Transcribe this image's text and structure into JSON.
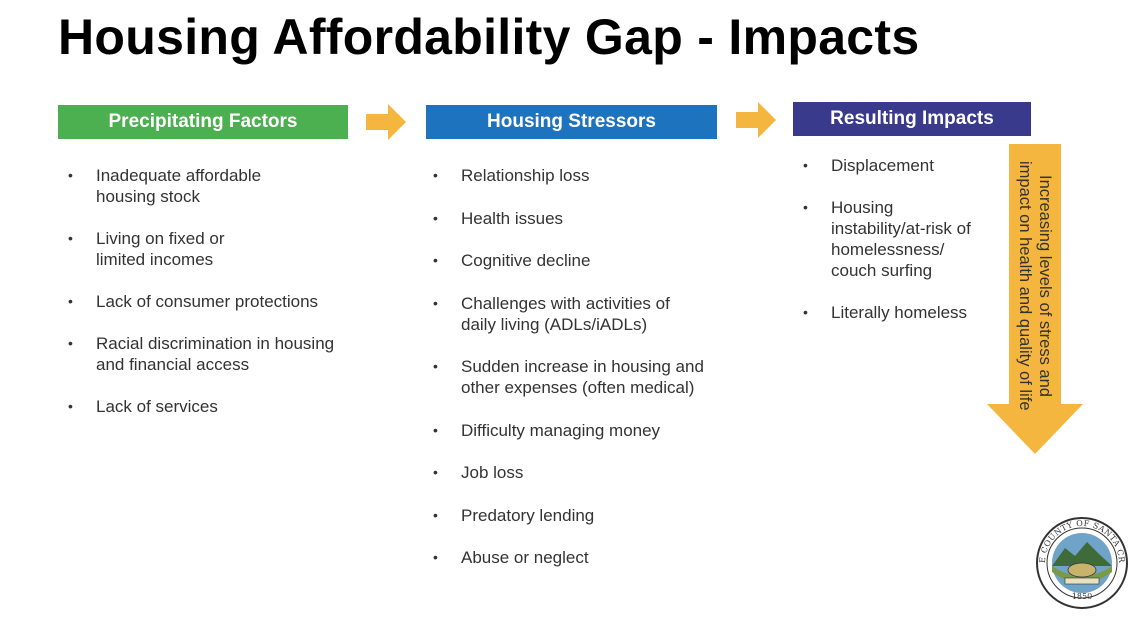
{
  "title": "Housing Affordability Gap - Impacts",
  "columns": [
    {
      "header": "Precipitating Factors",
      "color": "#4caf50",
      "items": [
        "Inadequate affordable housing stock",
        "Living on fixed or limited incomes",
        "Lack of consumer protections",
        "Racial discrimination in housing and financial access",
        "Lack of services"
      ]
    },
    {
      "header": "Housing Stressors",
      "color": "#1e73be",
      "items": [
        "Relationship loss",
        "Health issues",
        "Cognitive decline",
        "Challenges with activities of daily living (ADLs/iADLs)",
        "Sudden increase in housing and other expenses (often medical)",
        "Difficulty managing money",
        "Job loss",
        "Predatory lending",
        "Abuse or neglect"
      ]
    },
    {
      "header": "Resulting Impacts",
      "color": "#3a3a8c",
      "items": [
        "Displacement",
        "Housing instability/at-risk of homelessness/ couch surfing",
        "Literally homeless"
      ]
    }
  ],
  "arrow_color": "#f4b63f",
  "down_arrow_text": "Increasing levels of stress and impact on health and quality of life",
  "seal": {
    "text": "THE COUNTY OF SANTA CRUZ",
    "year": "1850"
  }
}
